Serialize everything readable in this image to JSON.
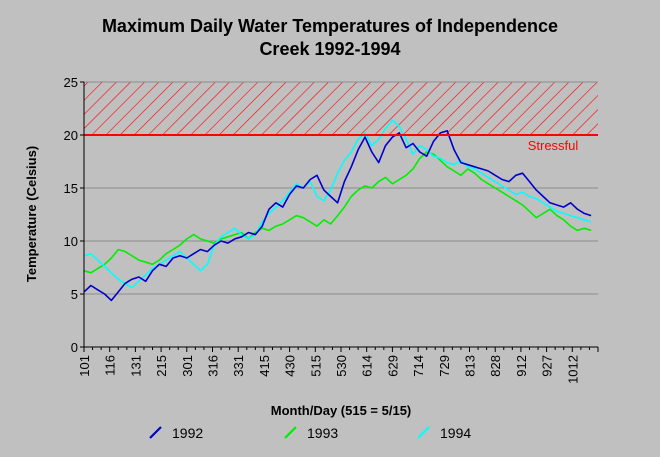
{
  "chart_data": {
    "type": "line",
    "title": [
      "Maximum Daily Water Temperatures of Independence",
      "Creek 1992-1994"
    ],
    "xlabel": "Month/Day (515 = 5/15)",
    "ylabel": "Temperature (Celsius)",
    "ylim": [
      0,
      25
    ],
    "yticks": [
      0,
      5,
      10,
      15,
      20,
      25
    ],
    "xticks": [
      "101",
      "116",
      "131",
      "215",
      "301",
      "316",
      "331",
      "415",
      "430",
      "515",
      "530",
      "614",
      "629",
      "714",
      "729",
      "813",
      "828",
      "912",
      "927",
      "1012"
    ],
    "grid": true,
    "legend_position": "bottom",
    "colors": {
      "1992": "#0000cc",
      "1993": "#00ee00",
      "1994": "#00ffff",
      "threshold": "#ff0000",
      "background": "#c0c0c0"
    },
    "annotations": [
      {
        "label": "Stressful",
        "range": [
          20,
          25
        ],
        "style": "hatched band"
      }
    ],
    "x_unit": "day index from 1/1 (tick every 15 days)",
    "series": [
      {
        "name": "1992",
        "x": [
          0,
          4,
          8,
          12,
          16,
          20,
          24,
          28,
          32,
          36,
          40,
          44,
          48,
          52,
          56,
          60,
          64,
          68,
          72,
          76,
          80,
          84,
          88,
          92,
          96,
          100,
          104,
          108,
          112,
          116,
          120,
          124,
          128,
          132,
          136,
          140,
          144,
          148,
          152,
          156,
          160,
          164,
          168,
          172,
          176,
          180,
          184,
          188,
          192,
          196,
          200,
          204,
          208,
          212,
          216,
          220,
          224,
          228,
          232,
          236,
          240,
          244,
          248,
          252,
          256,
          260,
          264,
          268,
          272,
          276,
          280,
          284,
          288,
          292,
          296
        ],
        "values": [
          5.2,
          5.8,
          5.4,
          5.0,
          4.4,
          5.2,
          6.0,
          6.4,
          6.6,
          6.2,
          7.2,
          7.8,
          7.6,
          8.4,
          8.6,
          8.4,
          8.8,
          9.2,
          9.0,
          9.6,
          10.0,
          9.8,
          10.2,
          10.4,
          10.8,
          10.6,
          11.4,
          13.0,
          13.6,
          13.2,
          14.4,
          15.2,
          15.0,
          15.8,
          16.2,
          14.8,
          14.2,
          13.6,
          15.6,
          17.0,
          18.6,
          19.8,
          18.4,
          17.4,
          19.0,
          19.8,
          20.2,
          18.8,
          19.2,
          18.4,
          18.0,
          19.4,
          20.2,
          20.4,
          18.6,
          17.4,
          17.2,
          17.0,
          16.8,
          16.6,
          16.2,
          15.8,
          15.6,
          16.2,
          16.4,
          15.6,
          14.8,
          14.2,
          13.6,
          13.4,
          13.2,
          13.6,
          13.0,
          12.6,
          12.4
        ]
      },
      {
        "name": "1993",
        "x": [
          0,
          4,
          8,
          12,
          16,
          20,
          24,
          28,
          32,
          36,
          40,
          44,
          48,
          52,
          56,
          60,
          64,
          68,
          72,
          76,
          80,
          84,
          88,
          92,
          96,
          100,
          104,
          108,
          112,
          116,
          120,
          124,
          128,
          132,
          136,
          140,
          144,
          148,
          152,
          156,
          160,
          164,
          168,
          172,
          176,
          180,
          184,
          188,
          192,
          196,
          200,
          204,
          208,
          212,
          216,
          220,
          224,
          228,
          232,
          236,
          240,
          244,
          248,
          252,
          256,
          260,
          264,
          268,
          272,
          276,
          280,
          284,
          288,
          292,
          296
        ],
        "values": [
          7.2,
          7.0,
          7.4,
          7.8,
          8.4,
          9.2,
          9.0,
          8.6,
          8.2,
          8.0,
          7.8,
          8.2,
          8.8,
          9.2,
          9.6,
          10.2,
          10.6,
          10.2,
          10.0,
          9.8,
          10.2,
          10.4,
          10.6,
          10.8,
          10.2,
          10.8,
          11.2,
          11.0,
          11.4,
          11.6,
          12.0,
          12.4,
          12.2,
          11.8,
          11.4,
          12.0,
          11.6,
          12.4,
          13.2,
          14.2,
          14.8,
          15.2,
          15.0,
          15.6,
          16.0,
          15.4,
          15.8,
          16.2,
          16.8,
          17.8,
          18.4,
          18.2,
          17.6,
          17.0,
          16.6,
          16.2,
          16.8,
          16.4,
          15.8,
          15.4,
          15.0,
          14.6,
          14.2,
          13.8,
          13.4,
          12.8,
          12.2,
          12.6,
          13.0,
          12.4,
          12.0,
          11.4,
          11.0,
          11.2,
          11.0
        ]
      },
      {
        "name": "1994",
        "x": [
          0,
          4,
          8,
          12,
          16,
          20,
          24,
          28,
          32,
          36,
          40,
          44,
          48,
          52,
          56,
          60,
          64,
          68,
          72,
          76,
          80,
          84,
          88,
          92,
          96,
          100,
          104,
          108,
          112,
          116,
          120,
          124,
          128,
          132,
          136,
          140,
          144,
          148,
          152,
          156,
          160,
          164,
          168,
          172,
          176,
          180,
          184,
          188,
          192,
          196,
          200,
          204,
          208,
          212,
          216,
          220,
          224,
          228,
          232,
          236,
          240,
          244,
          248,
          252,
          256,
          260,
          264,
          268,
          272,
          276,
          280,
          284,
          288,
          292,
          296
        ],
        "values": [
          8.6,
          8.8,
          8.2,
          7.6,
          7.0,
          6.4,
          6.0,
          5.6,
          6.2,
          6.8,
          7.4,
          7.8,
          8.2,
          8.6,
          9.0,
          8.4,
          7.8,
          7.2,
          7.8,
          9.6,
          10.4,
          10.8,
          11.2,
          10.6,
          10.2,
          10.6,
          11.8,
          12.6,
          13.2,
          13.8,
          14.6,
          15.4,
          15.0,
          15.6,
          14.2,
          13.8,
          14.8,
          16.4,
          17.6,
          18.4,
          19.6,
          20.2,
          19.0,
          19.6,
          20.6,
          21.4,
          20.8,
          19.6,
          18.2,
          19.0,
          18.6,
          18.0,
          17.8,
          17.4,
          17.2,
          17.6,
          17.0,
          16.8,
          16.4,
          16.0,
          15.6,
          15.2,
          14.8,
          14.4,
          14.6,
          14.2,
          14.0,
          13.6,
          13.2,
          12.8,
          12.6,
          12.4,
          12.2,
          12.0,
          11.8
        ]
      }
    ],
    "threshold": {
      "value": 20,
      "label": "Stressful"
    }
  }
}
